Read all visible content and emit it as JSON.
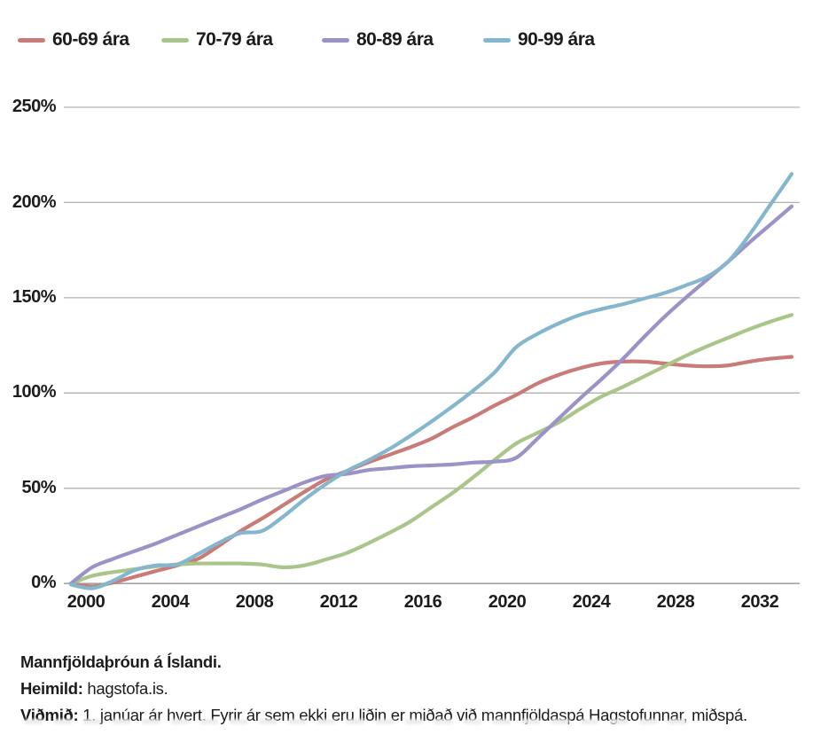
{
  "chart_data": {
    "type": "line",
    "title": "Mannfjöldaþróun á Íslandi.",
    "legend_position": "top",
    "grid": "horizontal",
    "x": [
      2000,
      2001,
      2002,
      2003,
      2004,
      2005,
      2006,
      2007,
      2008,
      2009,
      2010,
      2011,
      2012,
      2013,
      2014,
      2015,
      2016,
      2017,
      2018,
      2019,
      2020,
      2021,
      2022,
      2023,
      2024,
      2025,
      2026,
      2027,
      2028,
      2029,
      2030,
      2031,
      2032,
      2033,
      2034
    ],
    "x_tick_labels": [
      "2000",
      "2004",
      "2008",
      "2012",
      "2016",
      "2020",
      "2024",
      "2028",
      "2032"
    ],
    "y_ticks": [
      0,
      50,
      100,
      150,
      200,
      250
    ],
    "y_tick_labels": [
      "0%",
      "50%",
      "100%",
      "150%",
      "200%",
      "250%"
    ],
    "ylim": [
      0,
      250
    ],
    "unit": "%",
    "series": [
      {
        "name": "60-69 ára",
        "color": "#c97b78",
        "values": [
          0,
          -1.5,
          0.5,
          3.5,
          6.5,
          9.5,
          13,
          20,
          27.5,
          34,
          41,
          48,
          54.5,
          59,
          63.5,
          67.5,
          71.5,
          76,
          82,
          87.5,
          93.5,
          99,
          105,
          109.5,
          113,
          115.5,
          116.5,
          116.5,
          115.5,
          114.5,
          114,
          114.5,
          116.5,
          118,
          119
        ]
      },
      {
        "name": "70-79 ára",
        "color": "#a9c58a",
        "values": [
          0,
          4,
          6,
          7.5,
          9,
          10,
          10.5,
          10.5,
          10.5,
          10,
          8.5,
          9.5,
          12.5,
          16,
          21,
          26.5,
          32.5,
          40,
          47.5,
          56,
          65,
          73.5,
          79,
          84.5,
          91.5,
          98,
          103,
          108.5,
          114,
          119.5,
          124.5,
          129,
          133.5,
          137.5,
          141
        ]
      },
      {
        "name": "80-89 ára",
        "color": "#9b92c5",
        "values": [
          0,
          8.5,
          13,
          17,
          21,
          25.5,
          30,
          34.5,
          39,
          44,
          48.5,
          53,
          56.5,
          57.5,
          59.5,
          60.5,
          61.5,
          62,
          62.5,
          63.5,
          64,
          66,
          76,
          86.5,
          97,
          107,
          117.5,
          129,
          140,
          150,
          159.5,
          169,
          179,
          188.5,
          198
        ]
      },
      {
        "name": "90-99 ára",
        "color": "#84b7cd",
        "values": [
          -0.5,
          -2.5,
          1.5,
          7,
          9.5,
          10,
          15.5,
          21.5,
          26.5,
          27.5,
          35,
          44,
          52,
          59,
          64.5,
          70.5,
          77.5,
          85,
          93,
          101.5,
          111,
          124,
          131,
          136.5,
          141,
          144,
          146.5,
          149.5,
          152.5,
          156.5,
          161,
          169,
          183,
          199,
          215
        ]
      }
    ],
    "grid_color": "#b1b0ae",
    "zero_line_color": "#a5a4a2"
  },
  "footer": {
    "title": "Mannfjöldaþróun á Íslandi.",
    "source_label": "Heimild:",
    "source_value": " hagstofa.is.",
    "note_label": "Viðmið:",
    "note_value": " 1. janúar ár hvert. Fyrir ár sem ekki eru liðin er miðað við mannfjöldaspá Hagstofunnar, miðspá."
  }
}
